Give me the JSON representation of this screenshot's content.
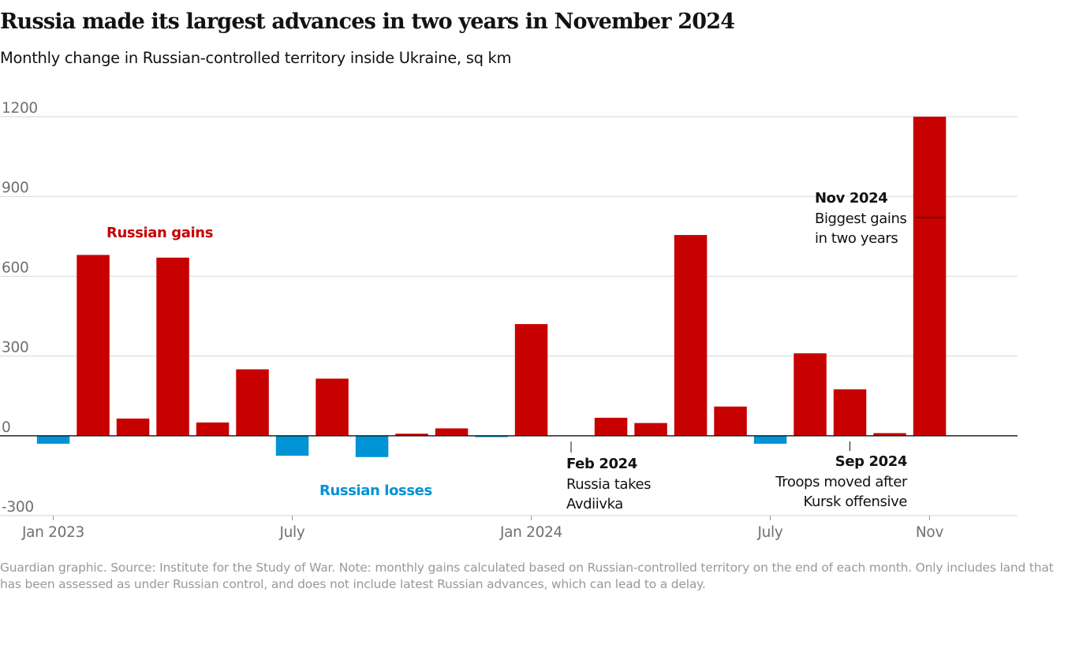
{
  "title": "Russia made its largest advances in two years in November 2024",
  "subtitle": "Monthly change in Russian-controlled territory inside Ukraine, sq km",
  "footer": "Guardian graphic. Source: Institute for the Study of War. Note: monthly gains calculated based on Russian-controlled territory on the end of each month. Only includes land that has been assessed as under Russian control, and does not include latest Russian advances, which can lead to a delay.",
  "colors": {
    "gain": "#c70000",
    "loss": "#0093d5",
    "grid": "#d6d6d6",
    "axis": "#121212",
    "label": "#707070"
  },
  "chart_data": {
    "type": "bar",
    "x": [
      "2023-01",
      "2023-02",
      "2023-03",
      "2023-04",
      "2023-05",
      "2023-06",
      "2023-07",
      "2023-08",
      "2023-09",
      "2023-10",
      "2023-11",
      "2023-12",
      "2024-01",
      "2024-02",
      "2024-03",
      "2024-04",
      "2024-05",
      "2024-06",
      "2024-07",
      "2024-08",
      "2024-09",
      "2024-10",
      "2024-11"
    ],
    "values": [
      -30,
      680,
      65,
      670,
      50,
      250,
      -75,
      215,
      -80,
      8,
      28,
      -5,
      420,
      0,
      68,
      48,
      755,
      110,
      -30,
      310,
      175,
      10,
      1200
    ],
    "ylim": [
      -300,
      1200
    ],
    "yticks": [
      "1200",
      "900",
      "600",
      "300",
      "0",
      "-300"
    ],
    "xtick_labels": [
      {
        "label": "Jan 2023",
        "index": 0
      },
      {
        "label": "July",
        "index": 6
      },
      {
        "label": "Jan 2024",
        "index": 12
      },
      {
        "label": "July",
        "index": 18
      },
      {
        "label": "Nov",
        "index": 22
      }
    ],
    "series_labels": {
      "gains": "Russian gains",
      "losses": "Russian losses"
    },
    "annotations": [
      {
        "index": 13,
        "title": "Feb 2024",
        "lines": [
          "Russia takes",
          "Avdiivka"
        ]
      },
      {
        "index": 20,
        "title": "Sep 2024",
        "lines": [
          "Troops moved after",
          "Kursk offensive"
        ]
      },
      {
        "index": 22,
        "title": "Nov 2024",
        "lines": [
          "Biggest gains",
          "in two years"
        ]
      }
    ],
    "grid": true
  }
}
